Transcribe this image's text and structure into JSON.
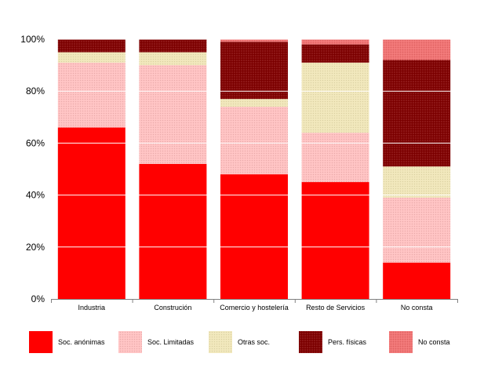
{
  "chart_data": {
    "type": "bar",
    "stacked": true,
    "categories": [
      "Industria",
      "Construción",
      "Comercio y hostelería",
      "Resto de Servicios",
      "No consta"
    ],
    "series": [
      {
        "name": "Soc. anónimas",
        "values": [
          66,
          52,
          48,
          45,
          14
        ],
        "color": "#ff0000",
        "pattern": "solid"
      },
      {
        "name": "Soc. Limitadas",
        "values": [
          25,
          38,
          26,
          19,
          25
        ],
        "color": "#ffc0c0",
        "pattern": "dots"
      },
      {
        "name": "Otras soc.",
        "values": [
          4,
          5,
          3,
          27,
          12
        ],
        "color": "#f0e6b8",
        "pattern": "dots"
      },
      {
        "name": "Pers. físicas",
        "values": [
          5,
          5,
          22,
          7,
          41
        ],
        "color": "#800000",
        "pattern": "dots"
      },
      {
        "name": "No consta",
        "values": [
          0,
          0,
          1,
          2,
          8
        ],
        "color": "#f07070",
        "pattern": "dots"
      }
    ],
    "yticks": [
      "0%",
      "20%",
      "40%",
      "60%",
      "80%",
      "100%"
    ],
    "ylim": [
      0,
      100
    ],
    "grid": true,
    "legend_position": "bottom"
  }
}
